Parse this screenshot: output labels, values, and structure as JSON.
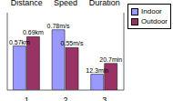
{
  "chart_data": {
    "type": "bar",
    "categories": [
      "1",
      "2",
      "3"
    ],
    "annotations": [
      "Distance",
      "Speed",
      "Duration"
    ],
    "series": [
      {
        "name": "Indoor",
        "color": "#9999ff",
        "values": [
          0.57,
          0.78,
          null
        ],
        "value_labels": [
          "0.57km",
          "0.78m/s",
          null
        ]
      },
      {
        "name": "Outdoor",
        "color": "#993366",
        "values": [
          0.69,
          0.55,
          null
        ],
        "value_labels": [
          "0.69km",
          "0.55m/s",
          null
        ]
      },
      {
        "name": "Indoor",
        "color": "#9999ff",
        "values": [
          null,
          null,
          12.3
        ],
        "value_labels": [
          null,
          null,
          "12.3min"
        ],
        "axis": "y2"
      },
      {
        "name": "Outdoor",
        "color": "#993366",
        "values": [
          null,
          null,
          20.7
        ],
        "value_labels": [
          null,
          null,
          "20.7min"
        ],
        "axis": "y2"
      }
    ],
    "ylim": [
      0,
      1
    ],
    "yticks": [
      0,
      1
    ],
    "y2lim": [
      0,
      60
    ],
    "y2ticks": [
      0,
      60
    ],
    "tick_labels": "x",
    "data_labels": true,
    "legend": "right"
  }
}
